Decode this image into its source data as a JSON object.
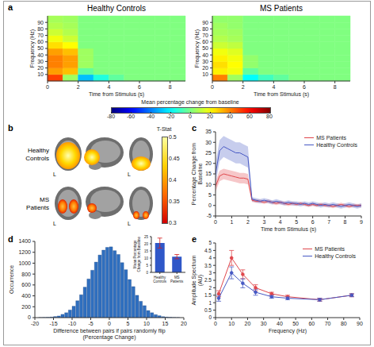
{
  "chart_data": [
    {
      "panel": "a",
      "type": "heatmap",
      "x_label": "Time from Stimulus (s)",
      "y_label": "Frequency (Hz)",
      "xlim": [
        0,
        9
      ],
      "xticks": [
        0,
        2,
        4,
        6,
        8
      ],
      "ylim": [
        0,
        100
      ],
      "yticks": [
        10,
        20,
        30,
        40,
        50,
        60,
        70,
        80,
        90
      ],
      "x_bins": [
        0,
        1,
        2,
        3,
        4,
        5,
        6,
        7,
        8,
        9
      ],
      "y_bins": [
        0,
        10,
        20,
        30,
        40,
        50,
        60,
        70,
        80,
        90,
        100
      ],
      "maps": [
        {
          "title": "Healthy Controls",
          "z": [
            [
              50,
              5,
              -30,
              -15,
              -5,
              0,
              0,
              0,
              0
            ],
            [
              35,
              30,
              -5,
              0,
              0,
              0,
              0,
              0,
              0
            ],
            [
              40,
              35,
              5,
              0,
              0,
              0,
              0,
              0,
              0
            ],
            [
              40,
              35,
              5,
              0,
              0,
              0,
              0,
              0,
              0
            ],
            [
              35,
              30,
              5,
              0,
              0,
              0,
              0,
              0,
              0
            ],
            [
              25,
              20,
              0,
              0,
              0,
              0,
              0,
              0,
              0
            ],
            [
              18,
              12,
              0,
              0,
              0,
              0,
              0,
              0,
              0
            ],
            [
              12,
              8,
              0,
              0,
              0,
              0,
              0,
              0,
              0
            ],
            [
              8,
              6,
              0,
              0,
              0,
              0,
              0,
              0,
              0
            ],
            [
              6,
              5,
              0,
              0,
              0,
              0,
              0,
              0,
              0
            ]
          ]
        },
        {
          "title": "MS Patients",
          "z": [
            [
              40,
              5,
              -20,
              -10,
              -5,
              0,
              0,
              0,
              0
            ],
            [
              22,
              18,
              -5,
              0,
              0,
              0,
              0,
              0,
              0
            ],
            [
              25,
              20,
              3,
              0,
              0,
              0,
              0,
              0,
              0
            ],
            [
              22,
              18,
              3,
              0,
              0,
              0,
              0,
              0,
              0
            ],
            [
              18,
              15,
              0,
              0,
              0,
              0,
              0,
              0,
              0
            ],
            [
              12,
              10,
              0,
              0,
              0,
              0,
              0,
              0,
              0
            ],
            [
              8,
              6,
              0,
              0,
              0,
              0,
              0,
              0,
              0
            ],
            [
              6,
              5,
              0,
              0,
              0,
              0,
              0,
              0,
              0
            ],
            [
              5,
              3,
              0,
              0,
              0,
              0,
              0,
              0,
              0
            ],
            [
              3,
              3,
              0,
              0,
              0,
              0,
              0,
              0,
              0
            ]
          ]
        }
      ],
      "colorbar": {
        "label": "Mean percentage change from baseline",
        "range": [
          -80,
          80
        ],
        "ticks": [
          -80,
          -60,
          -40,
          -20,
          0,
          20,
          40,
          60,
          80
        ]
      }
    },
    {
      "panel": "b",
      "type": "brain_map",
      "rows": [
        "Healthy Controls",
        "MS Patients"
      ],
      "hemisphere_label": "L",
      "colorbar": {
        "label": "T-Stat",
        "range": [
          0.3,
          0.5
        ],
        "ticks": [
          0.3,
          0.35,
          0.4,
          0.45,
          0.5
        ]
      }
    },
    {
      "panel": "c",
      "type": "line",
      "x_label": "Time from Stimulus (s)",
      "y_label": "Percentage Change from Baseline",
      "xlim": [
        0,
        9
      ],
      "xticks": [
        0,
        1,
        2,
        3,
        4,
        5,
        6,
        7,
        8,
        9
      ],
      "ylim": [
        -5,
        35
      ],
      "yticks": [
        -5,
        0,
        5,
        10,
        15,
        20,
        25,
        30,
        35
      ],
      "legend": "upper right",
      "x": [
        0,
        0.25,
        0.5,
        0.75,
        1,
        1.25,
        1.5,
        1.75,
        2,
        2.25,
        2.5,
        2.75,
        3,
        3.25,
        3.5,
        3.75,
        4,
        4.25,
        4.5,
        4.75,
        5,
        5.25,
        5.5,
        5.75,
        6,
        6.25,
        6.5,
        6.75,
        7,
        7.25,
        7.5,
        7.75,
        8,
        8.25,
        8.5,
        8.75,
        9
      ],
      "series": [
        {
          "name": "MS Patients",
          "color": "#e0474c",
          "line_style": "solid",
          "marker": "none",
          "values": [
            9,
            14,
            15,
            14.5,
            14,
            13.5,
            13,
            13,
            12.5,
            2.5,
            2,
            2,
            1.5,
            2,
            1.5,
            1,
            1.5,
            1,
            0.5,
            1,
            0.5,
            1,
            0.5,
            0,
            0.5,
            0,
            0.5,
            0,
            0,
            -0.5,
            0,
            0.5,
            0,
            -0.5,
            0,
            0,
            0
          ],
          "error": [
            2.5,
            2.5,
            2.5,
            2.5,
            2.5,
            2.5,
            2.5,
            2.5,
            2.5,
            0.8,
            0.8,
            0.8,
            0.8,
            0.8,
            0.8,
            0.8,
            0.8,
            0.8,
            0.8,
            0.8,
            0.8,
            0.8,
            0.8,
            0.8,
            0.8,
            0.8,
            0.8,
            0.8,
            0.8,
            0.8,
            0.8,
            0.8,
            0.8,
            0.8,
            0.8,
            0.8,
            0.8
          ]
        },
        {
          "name": "Healthy Controls",
          "color": "#4759c4",
          "line_style": "solid",
          "marker": "none",
          "values": [
            15,
            26,
            28,
            27,
            26,
            25,
            25,
            24,
            23,
            3,
            2.5,
            2,
            2.5,
            2,
            1.5,
            2,
            1.5,
            1,
            1.5,
            1,
            1,
            0.5,
            1,
            0.5,
            1,
            0.5,
            0,
            0.5,
            0,
            0.5,
            0,
            -0.5,
            0,
            0.5,
            0,
            -0.5,
            0
          ],
          "error": [
            5,
            5,
            5,
            5,
            5,
            5,
            5,
            5,
            5,
            1,
            1,
            1,
            1,
            1,
            1,
            1,
            1,
            1,
            1,
            1,
            1,
            1,
            1,
            1,
            1,
            1,
            1,
            1,
            1,
            1,
            1,
            1,
            1,
            1,
            1,
            1,
            1
          ]
        }
      ]
    },
    {
      "panel": "d",
      "type": "histogram",
      "x_label": "Difference between pairs if pairs randomly flip (Percentage Change)",
      "y_label": "Occurrence",
      "xlim": [
        -20,
        20
      ],
      "xticks": [
        -20,
        -15,
        -10,
        -5,
        0,
        5,
        10,
        15,
        20
      ],
      "ylim": [
        0,
        1400
      ],
      "yticks": [
        0,
        200,
        400,
        600,
        800,
        1000,
        1200,
        1400
      ],
      "color": "#2f6fbf",
      "bins": [
        -20,
        -19,
        -18,
        -17,
        -16,
        -15,
        -14,
        -13,
        -12,
        -11,
        -10,
        -9,
        -8,
        -7,
        -6,
        -5,
        -4,
        -3,
        -2,
        -1,
        0,
        1,
        2,
        3,
        4,
        5,
        6,
        7,
        8,
        9,
        10,
        11,
        12,
        13,
        14,
        15,
        16,
        17,
        18,
        19,
        20
      ],
      "counts": [
        0,
        1,
        3,
        5,
        10,
        20,
        30,
        60,
        90,
        140,
        210,
        310,
        420,
        560,
        710,
        870,
        1020,
        1150,
        1240,
        1290,
        1300,
        1230,
        1160,
        1010,
        880,
        700,
        570,
        410,
        300,
        220,
        130,
        90,
        55,
        35,
        18,
        10,
        6,
        2,
        1,
        0
      ],
      "inset": {
        "type": "bar",
        "y_label": "Mean Percentage Change from Baseline",
        "categories": [
          "Healthy Controls",
          "MS Patients"
        ],
        "values": [
          20.5,
          11
        ],
        "error": [
          3.5,
          1.5
        ],
        "color": "#2f57c8",
        "ylim": [
          0,
          25
        ],
        "yticks": [
          0,
          5,
          10,
          15,
          20,
          25
        ]
      }
    },
    {
      "panel": "e",
      "type": "line",
      "x_label": "Frequency (Hz)",
      "y_label": "Amplitude Spectrum (AU)",
      "xlim": [
        0,
        90
      ],
      "xticks": [
        0,
        10,
        20,
        30,
        40,
        50,
        60,
        70,
        80,
        90
      ],
      "ylim": [
        0,
        5
      ],
      "yticks": [
        0,
        0.5,
        1,
        1.5,
        2,
        2.5,
        3,
        3.5,
        4,
        4.5,
        5
      ],
      "legend": "upper right",
      "x": [
        2,
        10,
        17,
        25,
        35,
        45,
        65,
        85
      ],
      "series": [
        {
          "name": "MS Patients",
          "color": "#e0474c",
          "line_style": "solid",
          "marker": "circle",
          "values": [
            1.6,
            4.0,
            2.9,
            2.0,
            1.6,
            1.4,
            1.2,
            1.5
          ],
          "error": [
            0.2,
            0.5,
            0.3,
            0.2,
            0.1,
            0.1,
            0.1,
            0.1
          ]
        },
        {
          "name": "Healthy Controls",
          "color": "#4759c4",
          "line_style": "solid",
          "marker": "circle",
          "values": [
            1.3,
            3.0,
            2.3,
            1.7,
            1.4,
            1.3,
            1.2,
            1.5
          ],
          "error": [
            0.2,
            0.4,
            0.3,
            0.2,
            0.1,
            0.1,
            0.1,
            0.1
          ]
        }
      ]
    }
  ]
}
